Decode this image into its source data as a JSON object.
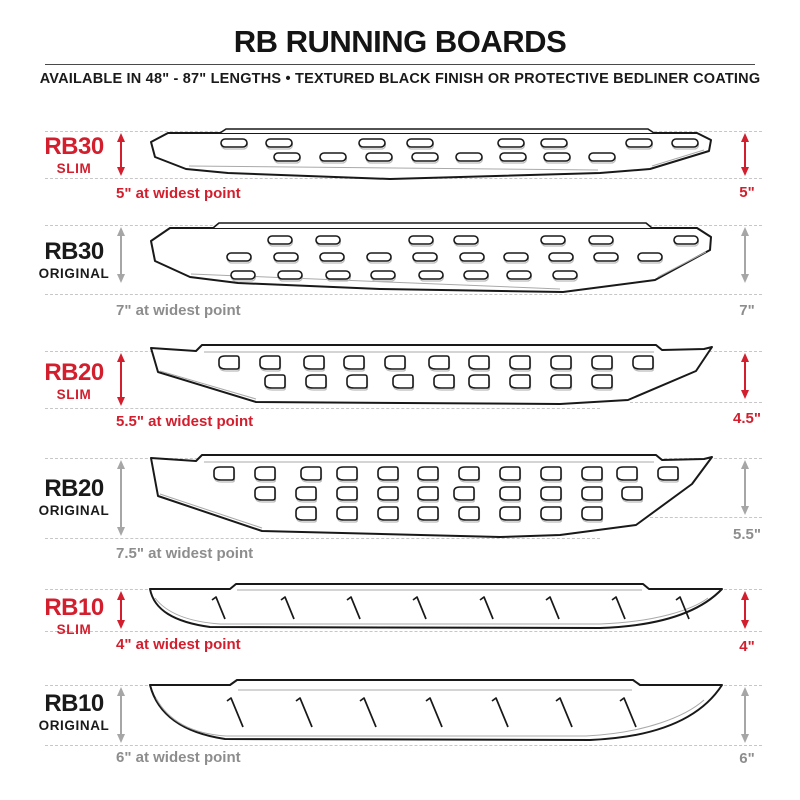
{
  "header": {
    "title": "RB RUNNING BOARDS",
    "subtitle": "AVAILABLE IN 48\" - 87\" LENGTHS   •   TEXTURED BLACK FINISH OR PROTECTIVE BEDLINER COATING"
  },
  "colors": {
    "accent_red": "#d21e2d",
    "dim_gray": "#8d8d8d",
    "dash_gray": "#c7c7c7",
    "line_black": "#191919"
  },
  "boards": [
    {
      "model": "RB30",
      "variant": "SLIM",
      "width_note": "5\" at widest point",
      "right_width": "5\"",
      "accent": "red"
    },
    {
      "model": "RB30",
      "variant": "ORIGINAL",
      "width_note": "7\" at widest point",
      "right_width": "7\"",
      "accent": "gray"
    },
    {
      "model": "RB20",
      "variant": "SLIM",
      "width_note": "5.5\" at widest point",
      "right_width": "4.5\"",
      "accent": "red"
    },
    {
      "model": "RB20",
      "variant": "ORIGINAL",
      "width_note": "7.5\" at widest point",
      "right_width": "5.5\"",
      "accent": "gray"
    },
    {
      "model": "RB10",
      "variant": "SLIM",
      "width_note": "4\" at widest point",
      "right_width": "4\"",
      "accent": "red"
    },
    {
      "model": "RB10",
      "variant": "ORIGINAL",
      "width_note": "6\" at widest point",
      "right_width": "6\"",
      "accent": "gray"
    }
  ]
}
